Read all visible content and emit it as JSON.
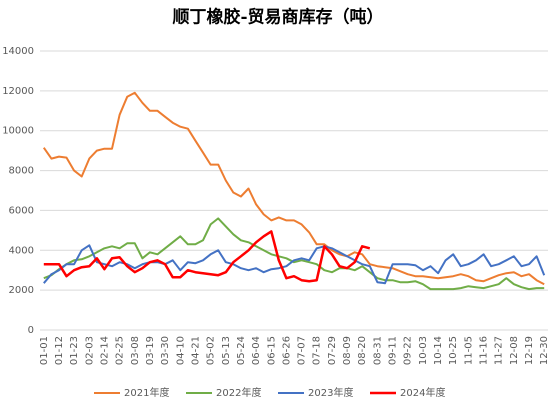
{
  "chart_data": {
    "type": "line",
    "title": "顺丁橡胶-贸易商库存（吨）",
    "categories": [
      "01-01",
      null,
      "01-12",
      null,
      "01-23",
      null,
      "02-03",
      null,
      "02-14",
      null,
      "02-25",
      null,
      "03-08",
      null,
      "03-19",
      null,
      "03-30",
      null,
      "04-10",
      null,
      "04-21",
      null,
      "05-02",
      null,
      "05-13",
      null,
      "05-24",
      null,
      "06-04",
      null,
      "06-15",
      null,
      "06-26",
      null,
      "07-07",
      null,
      "07-18",
      null,
      "07-29",
      null,
      "08-09",
      null,
      "08-20",
      null,
      "08-31",
      null,
      "09-11",
      null,
      "09-22",
      null,
      "10-03",
      null,
      "10-14",
      null,
      "10-25",
      null,
      "11-05",
      null,
      "11-16",
      null,
      "11-27",
      null,
      "12-08",
      null,
      "12-19",
      null,
      "12-30"
    ],
    "series": [
      {
        "name": "2021年度",
        "color": "#ed7d31",
        "values": [
          9150,
          8600,
          8700,
          8650,
          8000,
          7700,
          8600,
          9000,
          9100,
          9100,
          10800,
          11700,
          11900,
          11400,
          11000,
          11000,
          10700,
          10400,
          10200,
          10100,
          9500,
          8900,
          8300,
          8300,
          7500,
          6900,
          6700,
          7100,
          6300,
          5800,
          5500,
          5650,
          5500,
          5500,
          5300,
          4900,
          4300,
          4300,
          4000,
          3800,
          3700,
          3900,
          3800,
          3300,
          3200,
          3150,
          3100,
          2950,
          2800,
          2700,
          2700,
          2650,
          2600,
          2650,
          2700,
          2800,
          2700,
          2500,
          2450,
          2600,
          2750,
          2850,
          2900,
          2700,
          2800,
          2500,
          2300
        ]
      },
      {
        "name": "2022年度",
        "color": "#70ad47",
        "values": [
          2600,
          2750,
          3050,
          3300,
          3500,
          3550,
          3700,
          3900,
          4100,
          4200,
          4100,
          4350,
          4350,
          3600,
          3900,
          3800,
          4100,
          4400,
          4700,
          4300,
          4300,
          4500,
          5300,
          5600,
          5200,
          4800,
          4500,
          4400,
          4200,
          4000,
          3800,
          3700,
          3600,
          3400,
          3500,
          3400,
          3300,
          3000,
          2900,
          3100,
          3100,
          3000,
          3200,
          2900,
          2600,
          2500,
          2500,
          2400,
          2400,
          2450,
          2300,
          2050,
          2050,
          2050,
          2050,
          2100,
          2200,
          2150,
          2100,
          2200,
          2300,
          2600,
          2300,
          2150,
          2050,
          2100,
          2100
        ]
      },
      {
        "name": "2023年度",
        "color": "#4472c4",
        "values": [
          2350,
          2800,
          3000,
          3300,
          3300,
          4000,
          4250,
          3400,
          3300,
          3200,
          3400,
          3300,
          3100,
          3300,
          3400,
          3400,
          3300,
          3500,
          3000,
          3400,
          3350,
          3500,
          3800,
          4000,
          3400,
          3300,
          3100,
          3000,
          3100,
          2900,
          3050,
          3100,
          3200,
          3500,
          3600,
          3500,
          4100,
          4200,
          4100,
          3900,
          3700,
          3500,
          3300,
          3200,
          2400,
          2350,
          3300,
          3300,
          3300,
          3250,
          3000,
          3200,
          2850,
          3500,
          3800,
          3200,
          3300,
          3500,
          3800,
          3200,
          3300,
          3500,
          3700,
          3200,
          3300,
          3700,
          2750
        ]
      },
      {
        "name": "2024年度",
        "color": "#ff0000",
        "values": [
          3300,
          3300,
          3300,
          2700,
          3000,
          3150,
          3200,
          3600,
          3050,
          3600,
          3650,
          3200,
          2900,
          3100,
          3400,
          3500,
          3300,
          2650,
          2650,
          3000,
          2900,
          2850,
          2800,
          2750,
          2900,
          3400,
          3700,
          4000,
          4400,
          4700,
          4950,
          3500,
          2600,
          2700,
          2500,
          2450,
          2500,
          4200,
          3800,
          3200,
          3100,
          3400,
          4200,
          4100,
          null,
          null,
          null,
          null,
          null,
          null,
          null,
          null,
          null,
          null,
          null,
          null,
          null,
          null,
          null,
          null,
          null,
          null,
          null,
          null,
          null,
          null,
          null
        ]
      }
    ],
    "ylim": [
      0,
      14000
    ],
    "yticks": [
      0,
      2000,
      4000,
      6000,
      8000,
      10000,
      12000,
      14000
    ],
    "grid": true,
    "legend": "bottom"
  }
}
